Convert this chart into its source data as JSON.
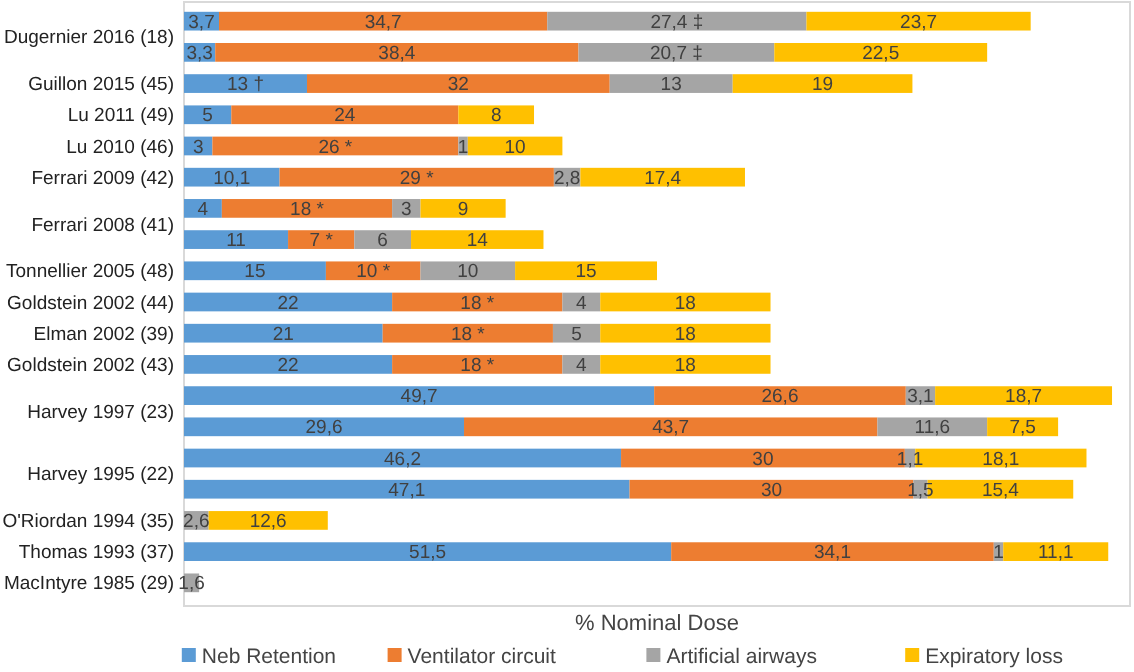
{
  "chart_data": {
    "type": "bar",
    "orientation": "horizontal",
    "stacked": true,
    "xlabel": "% Nominal Dose",
    "xlim": [
      0,
      100
    ],
    "tick_labels": "y",
    "legend": "bottom",
    "categories": [
      "Dugernier 2016 (18)",
      null,
      "Guillon 2015 (45)",
      "Lu 2011 (49)",
      "Lu 2010 (46)",
      "Ferrari 2009 (42)",
      "Ferrari 2008 (41)",
      null,
      "Tonnellier 2005 (48)",
      "Goldstein 2002 (44)",
      "Elman 2002 (39)",
      "Goldstein 2002 (43)",
      "Harvey 1997 (23)",
      null,
      "Harvey 1995 (22)",
      null,
      "O'Riordan 1994 (35)",
      "Thomas 1993 (37)",
      "MacIntyre 1985 (29)"
    ],
    "series": [
      {
        "name": "Neb Retention",
        "color": "#5b9bd5",
        "values": [
          3.7,
          3.3,
          13,
          5,
          3,
          10.1,
          4,
          11,
          15,
          22,
          21,
          22,
          49.7,
          29.6,
          46.2,
          47.1,
          null,
          51.5,
          null
        ],
        "value_labels": [
          "3,7",
          "3,3",
          "13 †",
          "5",
          "3",
          "10,1",
          "4",
          "11",
          "15",
          "22",
          "21",
          "22",
          "49,7",
          "29,6",
          "46,2",
          "47,1",
          null,
          "51,5",
          null
        ]
      },
      {
        "name": "Ventilator circuit",
        "color": "#ed7d31",
        "values": [
          34.7,
          38.4,
          32,
          24,
          26,
          29,
          18,
          7,
          10,
          18,
          18,
          18,
          26.6,
          43.7,
          30,
          30,
          null,
          34.1,
          null
        ],
        "value_labels": [
          "34,7",
          "38,4",
          "32",
          "24",
          "26 *",
          "29 *",
          "18 *",
          "7 *",
          "10 *",
          "18 *",
          "18 *",
          "18 *",
          "26,6",
          "43,7",
          "30",
          "30",
          null,
          "34,1",
          null
        ]
      },
      {
        "name": "Artificial airways",
        "color": "#a5a5a5",
        "values": [
          27.4,
          20.7,
          13,
          null,
          1,
          2.8,
          3,
          6,
          10,
          4,
          5,
          4,
          3.1,
          11.6,
          1.1,
          1.5,
          2.6,
          1,
          1.6
        ],
        "value_labels": [
          "27,4 ‡",
          "20,7 ‡",
          "13",
          null,
          "1",
          "2,8",
          "3",
          "6",
          "10",
          "4",
          "5",
          "4",
          "3,1",
          "11,6",
          "1,1",
          "1,5",
          "2,6",
          "1",
          "1,6"
        ]
      },
      {
        "name": "Expiratory loss",
        "color": "#ffc000",
        "values": [
          23.7,
          22.5,
          19,
          8,
          10,
          17.4,
          9,
          14,
          15,
          18,
          18,
          18,
          18.7,
          7.5,
          18.1,
          15.4,
          12.6,
          11.1,
          null
        ],
        "value_labels": [
          "23,7",
          "22,5",
          "19",
          "8",
          "10",
          "17,4",
          "9",
          "14",
          "15",
          "18",
          "18",
          "18",
          "18,7",
          "7,5",
          "18,1",
          "15,4",
          "12,6",
          "11,1",
          null
        ]
      }
    ]
  }
}
